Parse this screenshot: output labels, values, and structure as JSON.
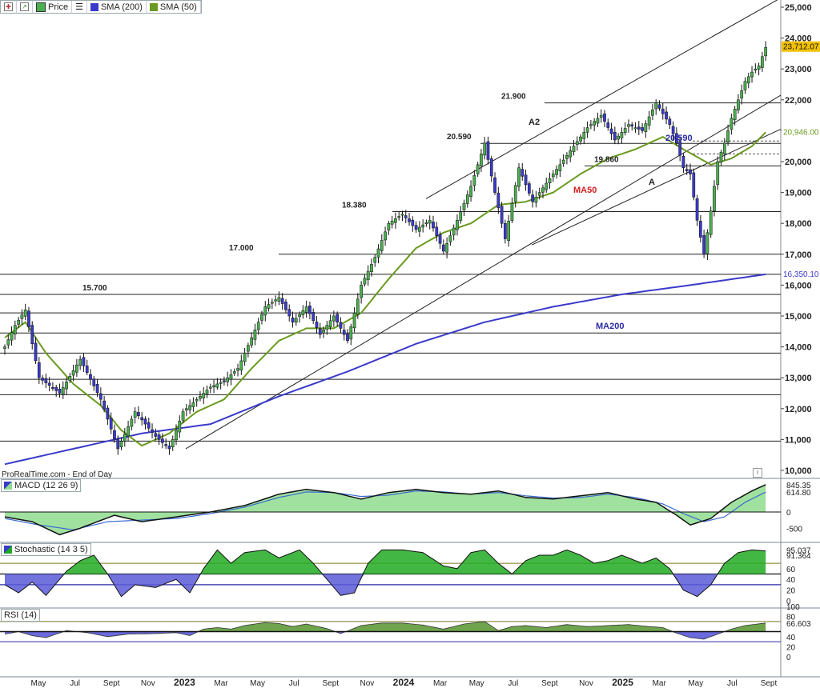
{
  "toolbar": {
    "icon1": "candlestick-icon",
    "icon2": "arrow-up-icon",
    "price_label": "Price",
    "list_icon": "list-icon",
    "sma200_label": "SMA (200)",
    "sma50_label": "SMA (50)",
    "sma200_color": "#3a3acb",
    "sma50_color": "#6a9a1f"
  },
  "source_label": "ProRealTime.com - End of Day",
  "main_chart": {
    "type": "candlestick",
    "y_ticks": [
      "25,000",
      "24,000",
      "23,000",
      "22,000",
      "21,000",
      "20,000",
      "19,000",
      "18,000",
      "17,000",
      "16,000",
      "15,000",
      "14,000",
      "13,000",
      "12,000",
      "11,000",
      "10,000"
    ],
    "ylim": [
      9900,
      25200
    ],
    "x_ticks": [
      "May",
      "Jul",
      "Sept",
      "Nov",
      "2023",
      "Mar",
      "May",
      "Jul",
      "Sept",
      "Nov",
      "2024",
      "Mar",
      "May",
      "Jul",
      "Sept",
      "Nov",
      "2025",
      "Mar",
      "May",
      "Jul",
      "Sept"
    ],
    "last_price": "23,712.07",
    "sma50_value": "20,946.00",
    "sma200_value": "16,350.10",
    "horizontal_levels": [
      {
        "label": "21.900",
        "value": 21900
      },
      {
        "label": "20.590",
        "value": 20590
      },
      {
        "label": "19.860",
        "value": 19860
      },
      {
        "label": "18.380",
        "value": 18380
      },
      {
        "label": "17.000",
        "value": 17000
      },
      {
        "label": "15.700",
        "value": 15700
      }
    ],
    "plain_levels": [
      16350,
      15100,
      14450,
      13800,
      12950,
      12450,
      10950
    ],
    "annotations": [
      {
        "text": "A2",
        "kind": "wave"
      },
      {
        "text": "A",
        "kind": "wave"
      },
      {
        "text": "20.590",
        "kind": "level-blue"
      },
      {
        "text": "MA50",
        "kind": "ma50"
      },
      {
        "text": "MA200",
        "kind": "ma200"
      }
    ],
    "anchors": [
      [
        0,
        14000
      ],
      [
        3,
        14700
      ],
      [
        6,
        15200
      ],
      [
        10,
        13000
      ],
      [
        16,
        12500
      ],
      [
        22,
        13600
      ],
      [
        28,
        12300
      ],
      [
        33,
        10700
      ],
      [
        38,
        11900
      ],
      [
        44,
        11100
      ],
      [
        48,
        10700
      ],
      [
        52,
        11900
      ],
      [
        56,
        12300
      ],
      [
        60,
        12700
      ],
      [
        64,
        12900
      ],
      [
        68,
        13300
      ],
      [
        72,
        14300
      ],
      [
        76,
        15300
      ],
      [
        80,
        15600
      ],
      [
        84,
        14800
      ],
      [
        88,
        15300
      ],
      [
        92,
        14400
      ],
      [
        96,
        15000
      ],
      [
        100,
        14200
      ],
      [
        104,
        16000
      ],
      [
        108,
        16900
      ],
      [
        112,
        18000
      ],
      [
        116,
        18300
      ],
      [
        120,
        17800
      ],
      [
        124,
        18100
      ],
      [
        128,
        17100
      ],
      [
        132,
        18100
      ],
      [
        136,
        19200
      ],
      [
        140,
        20600
      ],
      [
        143,
        19000
      ],
      [
        146,
        17500
      ],
      [
        150,
        19800
      ],
      [
        154,
        18700
      ],
      [
        158,
        19300
      ],
      [
        162,
        19900
      ],
      [
        166,
        20500
      ],
      [
        170,
        21100
      ],
      [
        174,
        21500
      ],
      [
        178,
        20700
      ],
      [
        182,
        21200
      ],
      [
        186,
        21000
      ],
      [
        190,
        21900
      ],
      [
        194,
        21200
      ],
      [
        196,
        20600
      ],
      [
        198,
        19800
      ],
      [
        200,
        19600
      ],
      [
        202,
        18100
      ],
      [
        204,
        17000
      ],
      [
        206,
        18400
      ],
      [
        208,
        20000
      ],
      [
        210,
        20600
      ],
      [
        212,
        21400
      ],
      [
        214,
        22000
      ],
      [
        216,
        22600
      ],
      [
        218,
        22900
      ],
      [
        220,
        23100
      ],
      [
        222,
        23700
      ]
    ],
    "ma50_anchors": [
      [
        0,
        14300
      ],
      [
        6,
        14800
      ],
      [
        12,
        13800
      ],
      [
        20,
        12800
      ],
      [
        28,
        12100
      ],
      [
        34,
        11300
      ],
      [
        40,
        10800
      ],
      [
        48,
        11200
      ],
      [
        56,
        11900
      ],
      [
        64,
        12300
      ],
      [
        72,
        13300
      ],
      [
        80,
        14200
      ],
      [
        88,
        14600
      ],
      [
        96,
        14600
      ],
      [
        104,
        15100
      ],
      [
        112,
        16200
      ],
      [
        120,
        17200
      ],
      [
        128,
        17700
      ],
      [
        136,
        18000
      ],
      [
        144,
        18600
      ],
      [
        152,
        18700
      ],
      [
        160,
        19000
      ],
      [
        168,
        19600
      ],
      [
        176,
        20100
      ],
      [
        184,
        20400
      ],
      [
        192,
        20800
      ],
      [
        198,
        20400
      ],
      [
        206,
        19900
      ],
      [
        212,
        20100
      ],
      [
        218,
        20500
      ],
      [
        222,
        20950
      ]
    ],
    "ma200_anchors": [
      [
        0,
        10200
      ],
      [
        20,
        10700
      ],
      [
        40,
        11200
      ],
      [
        60,
        11500
      ],
      [
        80,
        12400
      ],
      [
        100,
        13200
      ],
      [
        120,
        14100
      ],
      [
        140,
        14800
      ],
      [
        160,
        15300
      ],
      [
        180,
        15700
      ],
      [
        200,
        16000
      ],
      [
        222,
        16350
      ]
    ]
  },
  "macd_panel": {
    "label": "MACD (12 26 9)",
    "icon": "macd-icon",
    "ticks": [
      "845.35",
      "614.80",
      "0",
      "-500"
    ],
    "anchors": [
      [
        0,
        -150
      ],
      [
        8,
        -300
      ],
      [
        16,
        -700
      ],
      [
        22,
        -500
      ],
      [
        32,
        -100
      ],
      [
        40,
        -300
      ],
      [
        50,
        -150
      ],
      [
        60,
        0
      ],
      [
        70,
        200
      ],
      [
        80,
        550
      ],
      [
        88,
        700
      ],
      [
        96,
        600
      ],
      [
        104,
        400
      ],
      [
        112,
        600
      ],
      [
        120,
        700
      ],
      [
        128,
        600
      ],
      [
        136,
        550
      ],
      [
        144,
        650
      ],
      [
        152,
        450
      ],
      [
        160,
        400
      ],
      [
        168,
        500
      ],
      [
        176,
        600
      ],
      [
        184,
        400
      ],
      [
        190,
        300
      ],
      [
        196,
        -100
      ],
      [
        200,
        -400
      ],
      [
        206,
        -200
      ],
      [
        212,
        300
      ],
      [
        218,
        650
      ],
      [
        222,
        845
      ]
    ],
    "signal_anchors": [
      [
        0,
        -200
      ],
      [
        10,
        -400
      ],
      [
        20,
        -550
      ],
      [
        30,
        -300
      ],
      [
        40,
        -250
      ],
      [
        50,
        -200
      ],
      [
        60,
        -50
      ],
      [
        70,
        150
      ],
      [
        80,
        450
      ],
      [
        88,
        620
      ],
      [
        96,
        600
      ],
      [
        104,
        480
      ],
      [
        112,
        520
      ],
      [
        120,
        650
      ],
      [
        128,
        620
      ],
      [
        136,
        550
      ],
      [
        144,
        600
      ],
      [
        152,
        500
      ],
      [
        160,
        430
      ],
      [
        168,
        450
      ],
      [
        176,
        550
      ],
      [
        184,
        450
      ],
      [
        192,
        250
      ],
      [
        198,
        -50
      ],
      [
        204,
        -300
      ],
      [
        210,
        -150
      ],
      [
        216,
        300
      ],
      [
        222,
        615
      ]
    ]
  },
  "stochastic_panel": {
    "label": "Stochastic (14 3 5)",
    "icon": "stochastic-icon",
    "ticks": [
      "95.037",
      "91.364",
      "60",
      "40",
      "20",
      "0"
    ],
    "upper_band": 70,
    "lower_band": 30,
    "anchors": [
      [
        0,
        30
      ],
      [
        4,
        15
      ],
      [
        8,
        35
      ],
      [
        12,
        10
      ],
      [
        18,
        55
      ],
      [
        22,
        75
      ],
      [
        26,
        85
      ],
      [
        30,
        50
      ],
      [
        34,
        8
      ],
      [
        38,
        30
      ],
      [
        44,
        25
      ],
      [
        50,
        40
      ],
      [
        54,
        15
      ],
      [
        58,
        60
      ],
      [
        62,
        95
      ],
      [
        66,
        70
      ],
      [
        70,
        90
      ],
      [
        76,
        95
      ],
      [
        80,
        80
      ],
      [
        86,
        95
      ],
      [
        90,
        70
      ],
      [
        94,
        40
      ],
      [
        98,
        10
      ],
      [
        102,
        15
      ],
      [
        106,
        70
      ],
      [
        110,
        95
      ],
      [
        116,
        95
      ],
      [
        122,
        90
      ],
      [
        128,
        65
      ],
      [
        132,
        60
      ],
      [
        136,
        90
      ],
      [
        140,
        95
      ],
      [
        144,
        70
      ],
      [
        148,
        50
      ],
      [
        152,
        75
      ],
      [
        156,
        85
      ],
      [
        160,
        85
      ],
      [
        164,
        95
      ],
      [
        168,
        85
      ],
      [
        172,
        70
      ],
      [
        176,
        75
      ],
      [
        180,
        85
      ],
      [
        186,
        70
      ],
      [
        190,
        80
      ],
      [
        194,
        60
      ],
      [
        198,
        20
      ],
      [
        202,
        8
      ],
      [
        206,
        30
      ],
      [
        210,
        70
      ],
      [
        214,
        90
      ],
      [
        218,
        95
      ],
      [
        222,
        93
      ]
    ]
  },
  "rsi_panel": {
    "label": "RSI (14)",
    "icon": "rsi-icon",
    "ticks": [
      "100",
      "80",
      "66.603",
      "40",
      "20",
      "0"
    ],
    "midline": 50,
    "anchors": [
      [
        0,
        45
      ],
      [
        4,
        50
      ],
      [
        8,
        42
      ],
      [
        12,
        38
      ],
      [
        18,
        52
      ],
      [
        24,
        48
      ],
      [
        30,
        40
      ],
      [
        36,
        45
      ],
      [
        44,
        46
      ],
      [
        50,
        48
      ],
      [
        54,
        42
      ],
      [
        58,
        55
      ],
      [
        62,
        58
      ],
      [
        66,
        55
      ],
      [
        70,
        62
      ],
      [
        76,
        68
      ],
      [
        80,
        66
      ],
      [
        84,
        60
      ],
      [
        88,
        65
      ],
      [
        94,
        56
      ],
      [
        98,
        46
      ],
      [
        104,
        62
      ],
      [
        110,
        67
      ],
      [
        116,
        67
      ],
      [
        122,
        63
      ],
      [
        128,
        55
      ],
      [
        134,
        65
      ],
      [
        140,
        70
      ],
      [
        144,
        52
      ],
      [
        148,
        60
      ],
      [
        152,
        62
      ],
      [
        158,
        58
      ],
      [
        164,
        64
      ],
      [
        170,
        60
      ],
      [
        176,
        62
      ],
      [
        182,
        64
      ],
      [
        188,
        60
      ],
      [
        192,
        58
      ],
      [
        196,
        47
      ],
      [
        200,
        38
      ],
      [
        204,
        35
      ],
      [
        208,
        45
      ],
      [
        212,
        55
      ],
      [
        216,
        62
      ],
      [
        222,
        67
      ]
    ]
  }
}
